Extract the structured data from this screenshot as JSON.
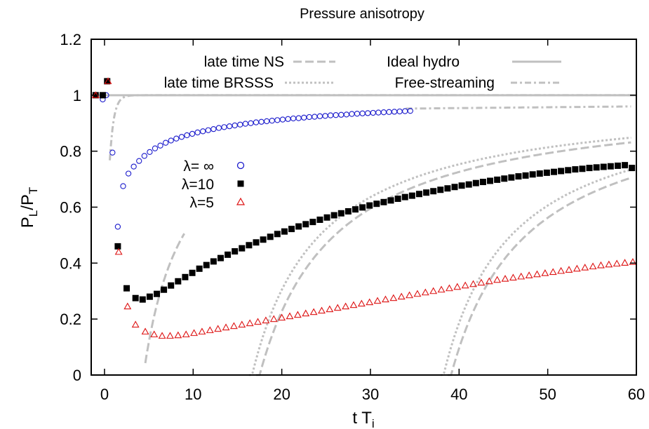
{
  "chart_data": {
    "type": "scatter",
    "title": "Pressure anisotropy",
    "xlabel": "t T",
    "xlabel_sub": "i",
    "ylabel": "P",
    "ylabel_sub1": "L",
    "ylabel_mid": "/P",
    "ylabel_sub2": "T",
    "xlim": [
      -1.5,
      60
    ],
    "ylim": [
      0,
      1.2
    ],
    "x_ticks": [
      "0",
      "10",
      "20",
      "30",
      "40",
      "50",
      "60"
    ],
    "y_ticks": [
      "0",
      "0.2",
      "0.4",
      "0.6",
      "0.8",
      "1",
      "1.2"
    ],
    "grid": false,
    "legend_lines": [
      {
        "label": "late time NS",
        "style": "dashed"
      },
      {
        "label": "late time BRSSS",
        "style": "dotted"
      },
      {
        "label": "Ideal hydro",
        "style": "solid"
      },
      {
        "label": "Free-streaming",
        "style": "dash-dot"
      }
    ],
    "legend_series": [
      {
        "label": "λ= ∞"
      },
      {
        "label": "λ=10"
      },
      {
        "label": "λ=5"
      }
    ],
    "series": [
      {
        "name": "λ= ∞",
        "marker": "circle",
        "color": "#1a1acc",
        "points": [
          [
            -1.0,
            1.0
          ],
          [
            -0.2,
            0.985
          ],
          [
            0.2,
            1.0
          ],
          [
            0.9,
            0.795
          ],
          [
            1.5,
            0.53
          ],
          [
            2.1,
            0.675
          ],
          [
            2.7,
            0.72
          ],
          [
            3.3,
            0.745
          ],
          [
            3.9,
            0.765
          ],
          [
            4.5,
            0.783
          ],
          [
            5.1,
            0.797
          ],
          [
            5.7,
            0.81
          ],
          [
            6.3,
            0.82
          ],
          [
            6.9,
            0.83
          ],
          [
            7.5,
            0.838
          ],
          [
            8.1,
            0.845
          ],
          [
            8.7,
            0.851
          ],
          [
            9.3,
            0.857
          ],
          [
            9.9,
            0.862
          ],
          [
            10.5,
            0.867
          ],
          [
            11.1,
            0.871
          ],
          [
            11.7,
            0.875
          ],
          [
            12.3,
            0.879
          ],
          [
            12.9,
            0.883
          ],
          [
            13.5,
            0.886
          ],
          [
            14.1,
            0.889
          ],
          [
            14.7,
            0.892
          ],
          [
            15.3,
            0.895
          ],
          [
            15.9,
            0.898
          ],
          [
            16.5,
            0.9
          ],
          [
            17.1,
            0.903
          ],
          [
            17.7,
            0.905
          ],
          [
            18.3,
            0.907
          ],
          [
            18.9,
            0.909
          ],
          [
            19.5,
            0.911
          ],
          [
            20.1,
            0.913
          ],
          [
            20.7,
            0.915
          ],
          [
            21.3,
            0.917
          ],
          [
            21.9,
            0.918
          ],
          [
            22.5,
            0.92
          ],
          [
            23.1,
            0.922
          ],
          [
            23.7,
            0.923
          ],
          [
            24.3,
            0.925
          ],
          [
            24.9,
            0.926
          ],
          [
            25.5,
            0.928
          ],
          [
            26.1,
            0.929
          ],
          [
            26.7,
            0.93
          ],
          [
            27.3,
            0.931
          ],
          [
            27.9,
            0.933
          ],
          [
            28.5,
            0.934
          ],
          [
            29.1,
            0.935
          ],
          [
            29.7,
            0.936
          ],
          [
            30.3,
            0.937
          ],
          [
            30.9,
            0.938
          ],
          [
            31.5,
            0.939
          ],
          [
            32.1,
            0.94
          ],
          [
            32.7,
            0.941
          ],
          [
            33.3,
            0.942
          ],
          [
            33.9,
            0.943
          ],
          [
            34.5,
            0.944
          ]
        ]
      },
      {
        "name": "λ=10",
        "marker": "square",
        "color": "#000000",
        "points": [
          [
            -1.0,
            1.0
          ],
          [
            -0.2,
            1.0
          ],
          [
            0.3,
            1.05
          ],
          [
            1.5,
            0.46
          ],
          [
            2.5,
            0.31
          ],
          [
            3.5,
            0.275
          ],
          [
            4.3,
            0.27
          ],
          [
            5.1,
            0.28
          ],
          [
            5.9,
            0.29
          ],
          [
            6.7,
            0.305
          ],
          [
            7.5,
            0.32
          ],
          [
            8.3,
            0.335
          ],
          [
            9.1,
            0.35
          ],
          [
            9.9,
            0.365
          ],
          [
            10.7,
            0.38
          ],
          [
            11.5,
            0.393
          ],
          [
            12.3,
            0.406
          ],
          [
            13.1,
            0.418
          ],
          [
            13.9,
            0.43
          ],
          [
            14.7,
            0.442
          ],
          [
            15.5,
            0.453
          ],
          [
            16.3,
            0.464
          ],
          [
            17.1,
            0.474
          ],
          [
            17.9,
            0.484
          ],
          [
            18.7,
            0.494
          ],
          [
            19.5,
            0.504
          ],
          [
            20.3,
            0.513
          ],
          [
            21.1,
            0.522
          ],
          [
            21.9,
            0.531
          ],
          [
            22.7,
            0.539
          ],
          [
            23.5,
            0.547
          ],
          [
            24.3,
            0.555
          ],
          [
            25.1,
            0.563
          ],
          [
            25.9,
            0.571
          ],
          [
            26.7,
            0.578
          ],
          [
            27.5,
            0.585
          ],
          [
            28.3,
            0.592
          ],
          [
            29.1,
            0.599
          ],
          [
            29.9,
            0.606
          ],
          [
            30.7,
            0.612
          ],
          [
            31.5,
            0.618
          ],
          [
            32.3,
            0.624
          ],
          [
            33.1,
            0.63
          ],
          [
            33.9,
            0.636
          ],
          [
            34.7,
            0.641
          ],
          [
            35.5,
            0.647
          ],
          [
            36.3,
            0.652
          ],
          [
            37.1,
            0.657
          ],
          [
            37.9,
            0.662
          ],
          [
            38.7,
            0.667
          ],
          [
            39.5,
            0.672
          ],
          [
            40.3,
            0.677
          ],
          [
            41.1,
            0.681
          ],
          [
            41.9,
            0.686
          ],
          [
            42.7,
            0.69
          ],
          [
            43.5,
            0.694
          ],
          [
            44.3,
            0.698
          ],
          [
            45.1,
            0.702
          ],
          [
            45.9,
            0.706
          ],
          [
            46.7,
            0.71
          ],
          [
            47.5,
            0.713
          ],
          [
            48.3,
            0.717
          ],
          [
            49.1,
            0.72
          ],
          [
            49.9,
            0.723
          ],
          [
            50.7,
            0.726
          ],
          [
            51.5,
            0.729
          ],
          [
            52.3,
            0.732
          ],
          [
            53.1,
            0.735
          ],
          [
            53.9,
            0.737
          ],
          [
            54.7,
            0.74
          ],
          [
            55.5,
            0.742
          ],
          [
            56.3,
            0.744
          ],
          [
            57.1,
            0.746
          ],
          [
            57.9,
            0.748
          ],
          [
            58.7,
            0.75
          ],
          [
            59.5,
            0.74
          ]
        ]
      },
      {
        "name": "λ=5",
        "marker": "triangle",
        "color": "#dd1111",
        "points": [
          [
            -1.0,
            1.0
          ],
          [
            0.4,
            1.05
          ],
          [
            1.6,
            0.44
          ],
          [
            2.6,
            0.245
          ],
          [
            3.5,
            0.18
          ],
          [
            4.6,
            0.155
          ],
          [
            5.6,
            0.145
          ],
          [
            6.5,
            0.14
          ],
          [
            7.4,
            0.14
          ],
          [
            8.3,
            0.142
          ],
          [
            9.2,
            0.145
          ],
          [
            10.1,
            0.15
          ],
          [
            11.0,
            0.155
          ],
          [
            11.9,
            0.16
          ],
          [
            12.8,
            0.165
          ],
          [
            13.7,
            0.17
          ],
          [
            14.6,
            0.175
          ],
          [
            15.5,
            0.18
          ],
          [
            16.4,
            0.185
          ],
          [
            17.3,
            0.19
          ],
          [
            18.2,
            0.195
          ],
          [
            19.1,
            0.2
          ],
          [
            20.0,
            0.205
          ],
          [
            20.9,
            0.21
          ],
          [
            21.8,
            0.215
          ],
          [
            22.7,
            0.22
          ],
          [
            23.6,
            0.225
          ],
          [
            24.5,
            0.23
          ],
          [
            25.4,
            0.235
          ],
          [
            26.3,
            0.24
          ],
          [
            27.2,
            0.245
          ],
          [
            28.1,
            0.25
          ],
          [
            29.0,
            0.255
          ],
          [
            29.9,
            0.26
          ],
          [
            30.8,
            0.265
          ],
          [
            31.7,
            0.27
          ],
          [
            32.6,
            0.275
          ],
          [
            33.5,
            0.28
          ],
          [
            34.4,
            0.285
          ],
          [
            35.3,
            0.29
          ],
          [
            36.2,
            0.295
          ],
          [
            37.1,
            0.3
          ],
          [
            38.0,
            0.305
          ],
          [
            38.9,
            0.31
          ],
          [
            39.8,
            0.315
          ],
          [
            40.7,
            0.32
          ],
          [
            41.6,
            0.325
          ],
          [
            42.5,
            0.33
          ],
          [
            43.4,
            0.335
          ],
          [
            44.3,
            0.34
          ],
          [
            45.2,
            0.344
          ],
          [
            46.1,
            0.348
          ],
          [
            47.0,
            0.352
          ],
          [
            47.9,
            0.356
          ],
          [
            48.8,
            0.36
          ],
          [
            49.7,
            0.364
          ],
          [
            50.6,
            0.368
          ],
          [
            51.5,
            0.372
          ],
          [
            52.4,
            0.376
          ],
          [
            53.3,
            0.38
          ],
          [
            54.2,
            0.384
          ],
          [
            55.1,
            0.388
          ],
          [
            56.0,
            0.392
          ],
          [
            56.9,
            0.395
          ],
          [
            57.8,
            0.398
          ],
          [
            58.7,
            0.401
          ],
          [
            59.6,
            0.404
          ]
        ]
      }
    ],
    "reference_curves": [
      {
        "name": "late time NS",
        "style": "dashed",
        "a": 0.2
      },
      {
        "name": "late time BRSSS",
        "style": "dotted",
        "a": 0.2
      },
      {
        "name": "late time NS",
        "style": "dashed",
        "a": 0.68
      },
      {
        "name": "late time BRSSS",
        "style": "dotted",
        "a": 0.68
      },
      {
        "name": "late time NS",
        "style": "dashed",
        "a": 0.0,
        "crossing": 4.5
      },
      {
        "name": "Ideal hydro",
        "style": "solid",
        "value": 1.0
      },
      {
        "name": "Free-streaming",
        "style": "dash-dot"
      }
    ]
  }
}
